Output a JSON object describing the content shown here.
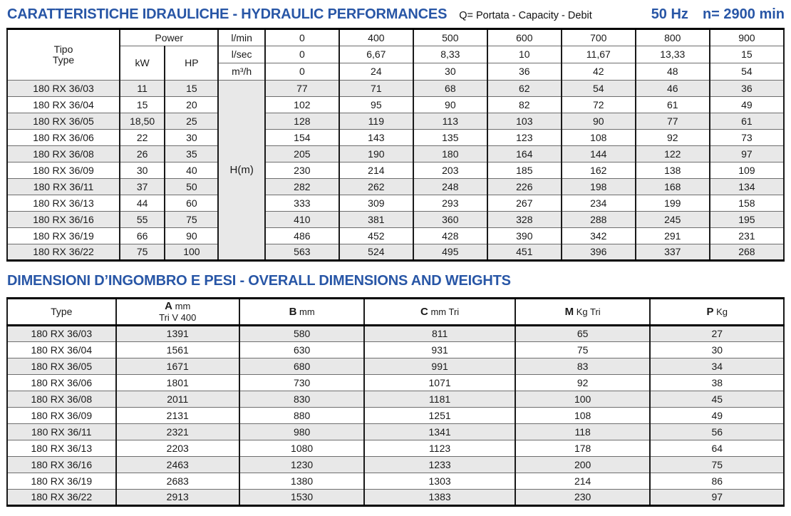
{
  "colors": {
    "accent": "#2856a6",
    "row_shade": "#e8e8e8"
  },
  "header": {
    "title": "CARATTERISTICHE IDRAULICHE - HYDRAULIC PERFORMANCES",
    "capacity_note": "Q= Portata - Capacity - Debit",
    "frequency": "50 Hz",
    "speed": "n= 2900 min"
  },
  "hydraulic": {
    "tipo_label": "Tipo",
    "type_label": "Type",
    "power_label": "Power",
    "kw_label": "kW",
    "hp_label": "HP",
    "head_label": "H(m)",
    "flow_header_rows": [
      {
        "unit": "l/min",
        "values": [
          "0",
          "400",
          "500",
          "600",
          "700",
          "800",
          "900"
        ]
      },
      {
        "unit": "l/sec",
        "values": [
          "0",
          "6,67",
          "8,33",
          "10",
          "11,67",
          "13,33",
          "15"
        ]
      },
      {
        "unit": "m³/h",
        "values": [
          "0",
          "24",
          "30",
          "36",
          "42",
          "48",
          "54"
        ]
      }
    ],
    "rows": [
      {
        "type": "180 RX 36/03",
        "kw": "11",
        "hp": "15",
        "head": [
          "77",
          "71",
          "68",
          "62",
          "54",
          "46",
          "36"
        ]
      },
      {
        "type": "180 RX 36/04",
        "kw": "15",
        "hp": "20",
        "head": [
          "102",
          "95",
          "90",
          "82",
          "72",
          "61",
          "49"
        ]
      },
      {
        "type": "180 RX 36/05",
        "kw": "18,50",
        "hp": "25",
        "head": [
          "128",
          "119",
          "113",
          "103",
          "90",
          "77",
          "61"
        ]
      },
      {
        "type": "180 RX 36/06",
        "kw": "22",
        "hp": "30",
        "head": [
          "154",
          "143",
          "135",
          "123",
          "108",
          "92",
          "73"
        ]
      },
      {
        "type": "180 RX 36/08",
        "kw": "26",
        "hp": "35",
        "head": [
          "205",
          "190",
          "180",
          "164",
          "144",
          "122",
          "97"
        ]
      },
      {
        "type": "180 RX 36/09",
        "kw": "30",
        "hp": "40",
        "head": [
          "230",
          "214",
          "203",
          "185",
          "162",
          "138",
          "109"
        ]
      },
      {
        "type": "180 RX 36/11",
        "kw": "37",
        "hp": "50",
        "head": [
          "282",
          "262",
          "248",
          "226",
          "198",
          "168",
          "134"
        ]
      },
      {
        "type": "180 RX 36/13",
        "kw": "44",
        "hp": "60",
        "head": [
          "333",
          "309",
          "293",
          "267",
          "234",
          "199",
          "158"
        ]
      },
      {
        "type": "180 RX 36/16",
        "kw": "55",
        "hp": "75",
        "head": [
          "410",
          "381",
          "360",
          "328",
          "288",
          "245",
          "195"
        ]
      },
      {
        "type": "180 RX 36/19",
        "kw": "66",
        "hp": "90",
        "head": [
          "486",
          "452",
          "428",
          "390",
          "342",
          "291",
          "231"
        ]
      },
      {
        "type": "180 RX 36/22",
        "kw": "75",
        "hp": "100",
        "head": [
          "563",
          "524",
          "495",
          "451",
          "396",
          "337",
          "268"
        ]
      }
    ]
  },
  "dimensions": {
    "title": "DIMENSIONI D’INGOMBRO E PESI - OVERALL DIMENSIONS AND WEIGHTS",
    "type_label": "Type",
    "columns": [
      {
        "letter": "A",
        "unit": "mm",
        "sub": "Tri V 400"
      },
      {
        "letter": "B",
        "unit": "mm",
        "sub": ""
      },
      {
        "letter": "C",
        "unit": "mm Tri",
        "sub": ""
      },
      {
        "letter": "M",
        "unit": "Kg Tri",
        "sub": ""
      },
      {
        "letter": "P",
        "unit": "Kg",
        "sub": ""
      }
    ],
    "rows": [
      {
        "type": "180 RX 36/03",
        "values": [
          "1391",
          "580",
          "811",
          "65",
          "27"
        ]
      },
      {
        "type": "180 RX 36/04",
        "values": [
          "1561",
          "630",
          "931",
          "75",
          "30"
        ]
      },
      {
        "type": "180 RX 36/05",
        "values": [
          "1671",
          "680",
          "991",
          "83",
          "34"
        ]
      },
      {
        "type": "180 RX 36/06",
        "values": [
          "1801",
          "730",
          "1071",
          "92",
          "38"
        ]
      },
      {
        "type": "180 RX 36/08",
        "values": [
          "2011",
          "830",
          "1181",
          "100",
          "45"
        ]
      },
      {
        "type": "180 RX 36/09",
        "values": [
          "2131",
          "880",
          "1251",
          "108",
          "49"
        ]
      },
      {
        "type": "180 RX 36/11",
        "values": [
          "2321",
          "980",
          "1341",
          "118",
          "56"
        ]
      },
      {
        "type": "180 RX 36/13",
        "values": [
          "2203",
          "1080",
          "1123",
          "178",
          "64"
        ]
      },
      {
        "type": "180 RX 36/16",
        "values": [
          "2463",
          "1230",
          "1233",
          "200",
          "75"
        ]
      },
      {
        "type": "180 RX 36/19",
        "values": [
          "2683",
          "1380",
          "1303",
          "214",
          "86"
        ]
      },
      {
        "type": "180 RX 36/22",
        "values": [
          "2913",
          "1530",
          "1383",
          "230",
          "97"
        ]
      }
    ]
  }
}
